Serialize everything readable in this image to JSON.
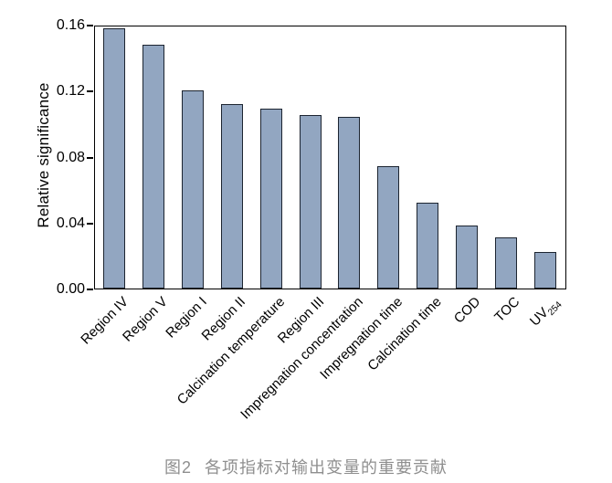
{
  "chart_data": {
    "type": "bar",
    "title": "",
    "xlabel": "",
    "ylabel": "Relative significance",
    "ylim": [
      0.0,
      0.16
    ],
    "grid": false,
    "legend": "none",
    "yticks": [
      {
        "value": 0.0,
        "label": "0.00"
      },
      {
        "value": 0.04,
        "label": "0.04"
      },
      {
        "value": 0.08,
        "label": "0.08"
      },
      {
        "value": 0.12,
        "label": "0.12"
      },
      {
        "value": 0.16,
        "label": "0.16"
      }
    ],
    "categories": [
      {
        "label": "Region IV"
      },
      {
        "label": "Region V"
      },
      {
        "label": "Region I"
      },
      {
        "label": "Region II"
      },
      {
        "label": "Calcination temperature"
      },
      {
        "label": "Region III"
      },
      {
        "label": "Impregnation concentration"
      },
      {
        "label": "Impregnation time"
      },
      {
        "label": "Calcination time"
      },
      {
        "label": "COD"
      },
      {
        "label": "TOC"
      },
      {
        "label": "UV",
        "sub": "254"
      }
    ],
    "values": [
      0.158,
      0.148,
      0.12,
      0.112,
      0.109,
      0.105,
      0.104,
      0.074,
      0.052,
      0.038,
      0.031,
      0.022
    ],
    "colors": {
      "bar_fill": "#92a6c1",
      "bar_edge": "#1c2430",
      "axis": "#000000",
      "caption": "#8f8f8f"
    }
  },
  "caption": {
    "label": "图2",
    "text": "各项指标对输出变量的重要贡献"
  }
}
